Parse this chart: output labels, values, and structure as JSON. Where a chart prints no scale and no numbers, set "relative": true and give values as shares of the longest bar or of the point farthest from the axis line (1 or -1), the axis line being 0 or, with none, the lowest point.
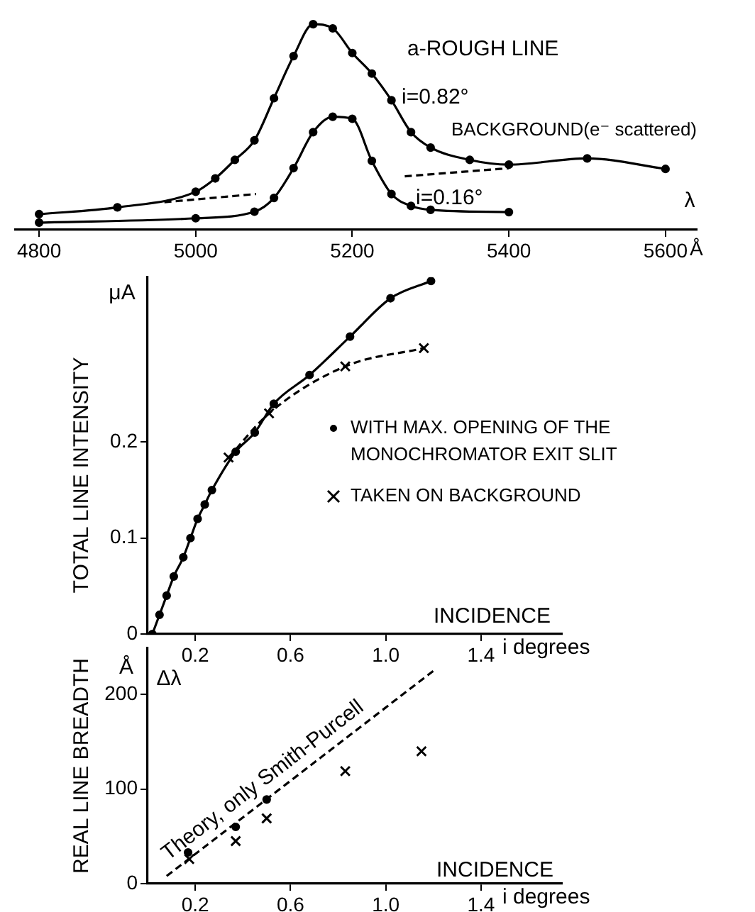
{
  "chart_data": [
    {
      "type": "line",
      "relative": true,
      "xlabel": "λ",
      "xlim": [
        4770,
        5640
      ],
      "xticks": [
        4800,
        5000,
        5200,
        5400,
        5600
      ],
      "tick_labels": "x",
      "grid": false,
      "legend": false,
      "annotations": [
        "a-ROUGH LINE",
        "BACKGROUND(e⁻ scattered)",
        "Å"
      ],
      "series": [
        {
          "name": "i=0.82°",
          "color": "#000000",
          "marker": "circle",
          "line_style": "solid",
          "x": [
            4800,
            4900,
            5000,
            5025,
            5050,
            5075,
            5100,
            5125,
            5150,
            5175,
            5200,
            5225,
            5250,
            5275,
            5300,
            5350,
            5400,
            5500,
            5600
          ],
          "values": [
            0.076,
            0.109,
            0.185,
            0.25,
            0.34,
            0.435,
            0.64,
            0.845,
            1,
            0.98,
            0.86,
            0.76,
            0.63,
            0.475,
            0.4,
            0.34,
            0.317,
            0.347,
            0.296
          ]
        },
        {
          "name": "i=0.16°",
          "color": "#000000",
          "marker": "circle",
          "line_style": "solid",
          "x": [
            4800,
            5000,
            5075,
            5100,
            5125,
            5150,
            5175,
            5200,
            5225,
            5250,
            5275,
            5300,
            5400
          ],
          "values": [
            0.035,
            0.056,
            0.088,
            0.155,
            0.3,
            0.475,
            0.55,
            0.54,
            0.335,
            0.174,
            0.116,
            0.097,
            0.086
          ]
        },
        {
          "color": "#000000",
          "marker": "none",
          "line_style": "dashed",
          "x": [
            4960,
            5077,
            5200,
            5267,
            5400
          ],
          "values": [
            0.134,
            0.174,
            null,
            0.26,
            0.3
          ]
        }
      ]
    },
    {
      "type": "line",
      "xlabel": "INCIDENCE",
      "ylabel": "TOTAL LINE INTENSITY",
      "xlim": [
        0,
        1.74
      ],
      "ylim": [
        0,
        0.372
      ],
      "xticks": [
        0.2,
        0.6,
        {
          "value": 1,
          "label": "1.0"
        },
        1.4
      ],
      "yticks": [
        0,
        0.1,
        0.2
      ],
      "grid": false,
      "legend": "right",
      "annotations": [
        "μA",
        "i degrees"
      ],
      "series": [
        {
          "name": "WITH MAX. OPENING OF THE MONOCHROMATOR EXIT SLIT",
          "color": "#000000",
          "marker": "circle",
          "line_style": "solid",
          "x": [
            0.02,
            0.05,
            0.08,
            0.11,
            0.15,
            0.18,
            0.21,
            0.24,
            0.27,
            0.37,
            0.45,
            0.53,
            0.68,
            0.85,
            1.02,
            1.19
          ],
          "values": [
            0.0,
            0.02,
            0.04,
            0.06,
            0.08,
            0.1,
            0.12,
            0.135,
            0.15,
            0.19,
            0.21,
            0.24,
            0.27,
            0.31,
            0.35,
            0.368
          ]
        },
        {
          "name": "TAKEN ON BACKGROUND",
          "color": "#000000",
          "marker": "cross",
          "line_style": "dashed",
          "x": [
            0.34,
            0.51,
            0.83,
            1.16
          ],
          "values": [
            0.184,
            0.23,
            0.279,
            0.298
          ]
        }
      ]
    },
    {
      "type": "scatter",
      "xlabel": "INCIDENCE",
      "ylabel": "REAL LINE BREADTH",
      "xlim": [
        0,
        1.74
      ],
      "ylim": [
        0,
        249
      ],
      "xticks": [
        0.2,
        0.6,
        {
          "value": 1,
          "label": "1.0"
        },
        1.4
      ],
      "yticks": [
        0,
        100,
        200
      ],
      "grid": false,
      "legend": false,
      "annotations": [
        "Å",
        "Δλ",
        "i degrees"
      ],
      "series": [
        {
          "color": "#000000",
          "marker": "circle",
          "x": [
            0.17,
            0.37,
            0.5
          ],
          "values": [
            33,
            60,
            89
          ]
        },
        {
          "color": "#000000",
          "marker": "cross",
          "x": [
            0.175,
            0.37,
            0.5,
            0.83,
            1.15
          ],
          "values": [
            26,
            45,
            69,
            119,
            140
          ]
        },
        {
          "type": "line",
          "name": "Theory, only Smith-Purcell",
          "color": "#000000",
          "marker": "none",
          "line_style": "dashed",
          "x": [
            0.08,
            1.2
          ],
          "values": [
            8,
            225
          ]
        }
      ]
    }
  ]
}
